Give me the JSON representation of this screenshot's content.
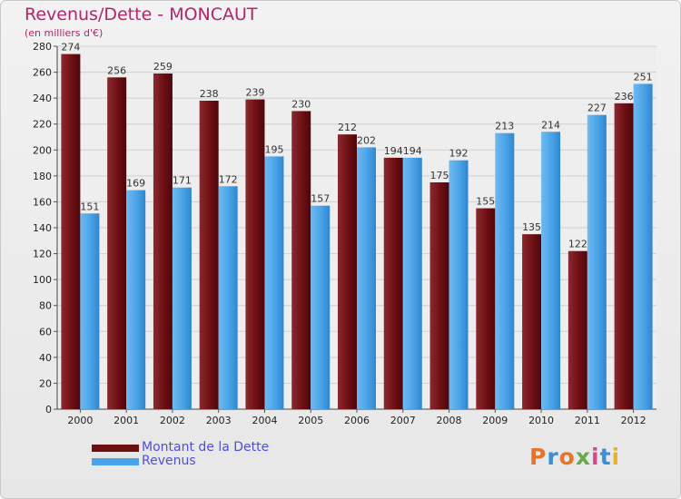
{
  "title": "Revenus/Dette - MONCAUT",
  "subtitle": "(en milliers d'€)",
  "logo_text": "Proxiti",
  "colors": {
    "title": "#b4246a",
    "debt": "#6e0f14",
    "revenue": "#4aa3e8",
    "legend_text": "#4f4fd9",
    "grid": "#d0d0d0"
  },
  "legend": [
    {
      "label": "Montant de la Dette",
      "color": "#6e0f14"
    },
    {
      "label": "Revenus",
      "color": "#4aa3e8"
    }
  ],
  "chart_data": {
    "type": "bar",
    "categories": [
      "2000",
      "2001",
      "2002",
      "2003",
      "2004",
      "2005",
      "2006",
      "2007",
      "2008",
      "2009",
      "2010",
      "2011",
      "2012"
    ],
    "series": [
      {
        "name": "Montant de la Dette",
        "values": [
          274,
          256,
          259,
          238,
          239,
          230,
          212,
          194,
          175,
          155,
          135,
          122,
          236
        ]
      },
      {
        "name": "Revenus",
        "values": [
          151,
          169,
          171,
          172,
          195,
          157,
          202,
          194,
          192,
          213,
          214,
          227,
          251
        ]
      }
    ],
    "ylim": [
      0,
      280
    ],
    "yticks": [
      0,
      20,
      40,
      60,
      80,
      100,
      120,
      140,
      160,
      180,
      200,
      220,
      240,
      260,
      280
    ],
    "grid": true,
    "legend_position": "bottom-left"
  }
}
